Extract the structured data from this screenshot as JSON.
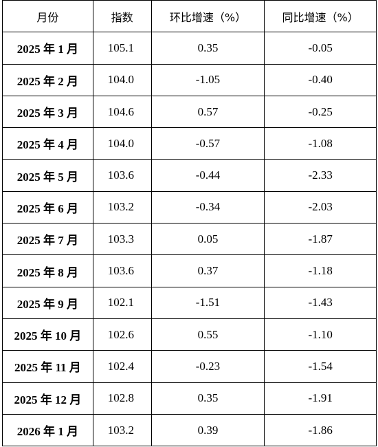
{
  "table": {
    "header": [
      "月份",
      "指数",
      "环比增速（%）",
      "同比增速（%）"
    ],
    "rows": [
      [
        "2025 年 1 月",
        "105.1",
        "0.35",
        "-0.05"
      ],
      [
        "2025 年 2 月",
        "104.0",
        "-1.05",
        "-0.40"
      ],
      [
        "2025 年 3 月",
        "104.6",
        "0.57",
        "-0.25"
      ],
      [
        "2025 年 4 月",
        "104.0",
        "-0.57",
        "-1.08"
      ],
      [
        "2025 年 5 月",
        "103.6",
        "-0.44",
        "-2.33"
      ],
      [
        "2025 年 6 月",
        "103.2",
        "-0.34",
        "-2.03"
      ],
      [
        "2025 年 7 月",
        "103.3",
        "0.05",
        "-1.87"
      ],
      [
        "2025 年 8 月",
        "103.6",
        "0.37",
        "-1.18"
      ],
      [
        "2025 年 9 月",
        "102.1",
        "-1.51",
        "-1.43"
      ],
      [
        "2025 年 10 月",
        "102.6",
        "0.55",
        "-1.10"
      ],
      [
        "2025 年 11 月",
        "102.4",
        "-0.23",
        "-1.54"
      ],
      [
        "2025 年 12 月",
        "102.8",
        "0.35",
        "-1.91"
      ],
      [
        "2026 年 1 月",
        "103.2",
        "0.39",
        "-1.86"
      ]
    ]
  }
}
